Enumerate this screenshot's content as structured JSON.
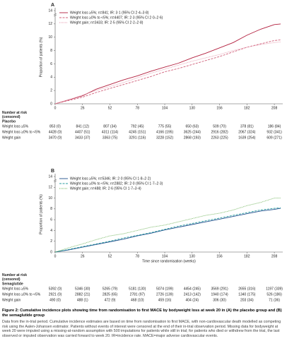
{
  "chart_data": [
    {
      "type": "line",
      "panel": "A",
      "ylabel": "Proportion of patients (%)",
      "x": [
        0,
        13,
        26,
        39,
        52,
        65,
        78,
        91,
        104,
        117,
        130,
        143,
        156,
        169,
        182,
        195,
        208,
        214
      ],
      "xlim": [
        0,
        216
      ],
      "xticks": [
        0,
        26,
        52,
        78,
        104,
        130,
        156,
        182,
        208
      ],
      "ylim": [
        0,
        14
      ],
      "yticks": [
        0,
        2,
        4,
        6,
        8,
        10,
        12,
        14
      ],
      "series": [
        {
          "name": "Weight loss ≥5%; n=841; IR: 3·1 (95% CI 2·4–3·8)",
          "color": "#b3203f",
          "dash": "solid",
          "values": [
            0,
            0.6,
            1.2,
            2.2,
            2.9,
            3.6,
            4.2,
            4.9,
            5.5,
            6.1,
            6.9,
            7.6,
            8.4,
            9.2,
            10.3,
            11.2,
            11.9,
            12.0
          ]
        },
        {
          "name": "Weight loss ≥0% to <5%; n=4407; IR: 2·3 (95% CI 2·0–2·6)",
          "color": "#d0607a",
          "dash": "dashed",
          "values": [
            0,
            0.5,
            1.0,
            1.7,
            2.3,
            2.9,
            3.5,
            4.1,
            4.8,
            5.3,
            5.9,
            6.5,
            7.1,
            7.8,
            8.5,
            9.0,
            9.5,
            9.6
          ]
        },
        {
          "name": "Weight gain; n=3433; IR: 2·5 (95% CI 2·2–2·8)",
          "color": "#e59aae",
          "dash": "dotted",
          "values": [
            0,
            0.6,
            1.3,
            2.0,
            2.6,
            3.2,
            3.9,
            4.6,
            5.2,
            5.8,
            6.4,
            6.9,
            7.4,
            8.0,
            8.5,
            8.9,
            9.2,
            9.3
          ]
        }
      ],
      "risk_table": {
        "title": "Number at risk\n(censored)",
        "group": "Placebo",
        "rows": [
          {
            "label": "Weight loss ≥5%",
            "cells": [
              "853 (0)",
              "841 (12)",
              "807 (34)",
              "792 (45)",
              "775 (55)",
              "650 (63)",
              "509 (70)",
              "378 (81)",
              "186 (84)"
            ]
          },
          {
            "label": "Weight loss ≥0% to <5%",
            "cells": [
              "4428 (0)",
              "4407 (51)",
              "4311 (114)",
              "4245 (151)",
              "4166 (195)",
              "3625 (244)",
              "2916 (282)",
              "2067 (324)",
              "932 (341)"
            ]
          },
          {
            "label": "Weight gain",
            "cells": [
              "3470 (0)",
              "3433 (37)",
              "3363 (75)",
              "3291 (116)",
              "3228 (152)",
              "2868 (193)",
              "2263 (225)",
              "1639 (254)",
              "609 (271)"
            ]
          }
        ]
      }
    },
    {
      "type": "line",
      "panel": "B",
      "ylabel": "Proportion of patients (%)",
      "xlabel": "Time since randomisation (weeks)",
      "x": [
        0,
        13,
        26,
        39,
        52,
        65,
        78,
        91,
        104,
        117,
        130,
        143,
        156,
        169,
        182,
        195,
        208,
        214
      ],
      "xlim": [
        0,
        216
      ],
      "xticks": [
        0,
        26,
        52,
        78,
        104,
        130,
        156,
        182,
        208
      ],
      "ylim": [
        0,
        14
      ],
      "yticks": [
        0,
        2,
        4,
        6,
        8,
        10,
        12,
        14
      ],
      "series": [
        {
          "name": "Weight loss ≥5%; n=5346; IR: 2·0 (95% CI 1·8–2·2)",
          "color": "#1f4e8c",
          "dash": "solid",
          "values": [
            0,
            0.4,
            0.9,
            1.4,
            1.9,
            2.4,
            3.0,
            3.5,
            4.1,
            4.6,
            5.1,
            5.6,
            6.1,
            6.6,
            7.1,
            7.6,
            7.9,
            8.1
          ]
        },
        {
          "name": "Weight loss ≥0% to <5%; n=2882; IR: 2·0 (95% CI 1·7–2·3)",
          "color": "#2a9d9f",
          "dash": "dashed",
          "values": [
            0,
            0.5,
            1.0,
            1.5,
            2.0,
            2.6,
            3.1,
            3.6,
            4.2,
            4.8,
            5.3,
            5.8,
            6.3,
            6.8,
            7.3,
            7.8,
            8.1,
            8.2
          ]
        },
        {
          "name": "Weight gain; n=488; IR: 2·6 (95% CI 1·7–3·4)",
          "color": "#6fb35a",
          "dash": "dotted",
          "values": [
            0,
            0.8,
            1.5,
            2.3,
            3.0,
            3.4,
            4.0,
            4.6,
            5.0,
            5.6,
            6.2,
            6.8,
            7.2,
            7.8,
            8.6,
            9.2,
            10.0,
            10.0
          ]
        }
      ],
      "risk_table": {
        "title": "Number at risk\n(censored)",
        "group": "Semaglutide",
        "rows": [
          {
            "label": "Weight loss ≥5%",
            "cells": [
              "5392 (0)",
              "5346 (30)",
              "5265 (79)",
              "5181 (130)",
              "5074 (199)",
              "4454 (245)",
              "3569 (291)",
              "2655 (316)",
              "1197 (339)"
            ]
          },
          {
            "label": "Weight loss ≥0% to <5%",
            "cells": [
              "2921 (0)",
              "2882 (21)",
              "2825 (65)",
              "2781 (97)",
              "2726 (139)",
              "2413 (142)",
              "1940 (174)",
              "1340 (175)",
              "526 (186)"
            ]
          },
          {
            "label": "Weight gain",
            "cells": [
              "490 (0)",
              "488 (1)",
              "472 (9)",
              "468 (10)",
              "459 (16)",
              "404 (24)",
              "306 (30)",
              "203 (34)",
              "71 (36)"
            ]
          }
        ]
      }
    }
  ],
  "caption": {
    "title": "Figure 2: Cumulative incidence plots showing time from randomisation to first MACE by bodyweight loss at week 20 in (A) the placebo group and (B) the semaglutide group",
    "body": "Data from the in-trial period. Cumulative incidence estimates are based on time from randomisation to first MACE, with non-cardiovascular death modelled as competing risk using the Aalen-Johansen estimator. Patients without events of interest were censored at the end of their in-trial observation period. Missing data for bodyweight at week 20 were imputed using a missing-at-random assumption with 500 imputations for patients while still in trial; for patients who died or withdrew from the trial, the last observed or imputed observation was carried forward to week 20. IR=incidence rate. MACE=major adverse cardiovascular events."
  }
}
